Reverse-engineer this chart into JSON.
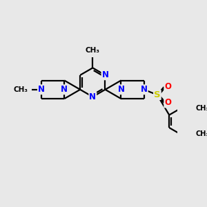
{
  "bg_color": "#e8e8e8",
  "bond_color": "#000000",
  "n_color": "#0000ff",
  "s_color": "#cccc00",
  "o_color": "#ff0000",
  "line_width": 1.6,
  "font_size": 8.5,
  "figsize": [
    3.0,
    3.0
  ],
  "dpi": 100,
  "xlim": [
    0,
    10
  ],
  "ylim": [
    0,
    10
  ]
}
